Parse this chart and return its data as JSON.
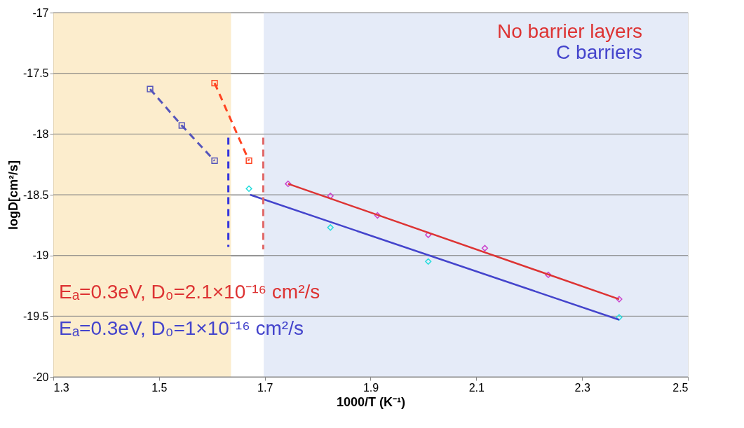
{
  "chart_data": {
    "type": "line",
    "xlabel": "1000/T (K⁻¹)",
    "ylabel": "logD[cm²/s]",
    "xlim": [
      1.3,
      2.5
    ],
    "xticks": [
      1.3,
      1.5,
      1.7,
      1.9,
      2.1,
      2.3,
      2.5
    ],
    "ylim": [
      -20,
      -17
    ],
    "yticks": [
      -20,
      -19.5,
      -19,
      -18.5,
      -18,
      -17.5,
      -17
    ],
    "grid": "y",
    "legend": "top right",
    "bands": [
      {
        "axis": "x",
        "from": 1.3,
        "to": 1.636,
        "color": "#fbe9c0"
      },
      {
        "axis": "x",
        "from": 1.698,
        "to": 2.5,
        "color": "#dfe6f6"
      }
    ],
    "series": [
      {
        "color": "#5555bb",
        "marker": "square",
        "line_style": "dashed",
        "x": [
          1.483,
          1.543,
          1.605
        ],
        "values": [
          -17.63,
          -17.93,
          -18.22
        ]
      },
      {
        "color": "#ff4422",
        "marker": "square",
        "line_style": "dashed",
        "x": [
          1.605,
          1.67
        ],
        "values": [
          -17.58,
          -18.22
        ]
      },
      {
        "type": "scatter",
        "color": "#cc44cc",
        "marker": "diamond",
        "x": [
          1.744,
          1.824,
          1.913,
          2.009,
          2.116,
          2.236,
          2.37
        ],
        "values": [
          -18.41,
          -18.51,
          -18.67,
          -18.83,
          -18.94,
          -19.16,
          -19.36
        ]
      },
      {
        "type": "scatter",
        "color": "#22dddd",
        "marker": "diamond",
        "x": [
          1.67,
          1.824,
          2.009,
          2.37
        ],
        "values": [
          -18.45,
          -18.77,
          -19.05,
          -19.51
        ]
      },
      {
        "name": "No barrier layers",
        "color": "#dd3333",
        "marker": "none",
        "line_style": "solid",
        "x": [
          1.744,
          2.37
        ],
        "values": [
          -18.41,
          -19.36
        ]
      },
      {
        "name": "C barriers",
        "color": "#4444cc",
        "marker": "none",
        "line_style": "solid",
        "x": [
          1.672,
          2.37
        ],
        "values": [
          -18.5,
          -19.53
        ]
      },
      {
        "color": "#3333dd",
        "marker": "none",
        "line_style": "dashed",
        "x": [
          1.631,
          1.631
        ],
        "values": [
          -18.03,
          -18.93
        ]
      },
      {
        "color": "#e06666",
        "marker": "none",
        "line_style": "dashed",
        "x": [
          1.697,
          1.697
        ],
        "values": [
          -18.03,
          -18.95
        ]
      }
    ],
    "annotations": [
      "Eₐ=0.3eV, D₀=2.1×10⁻¹⁶ cm²/s",
      "Eₐ=0.3eV, D₀=1×10⁻¹⁶ cm²/s"
    ]
  }
}
